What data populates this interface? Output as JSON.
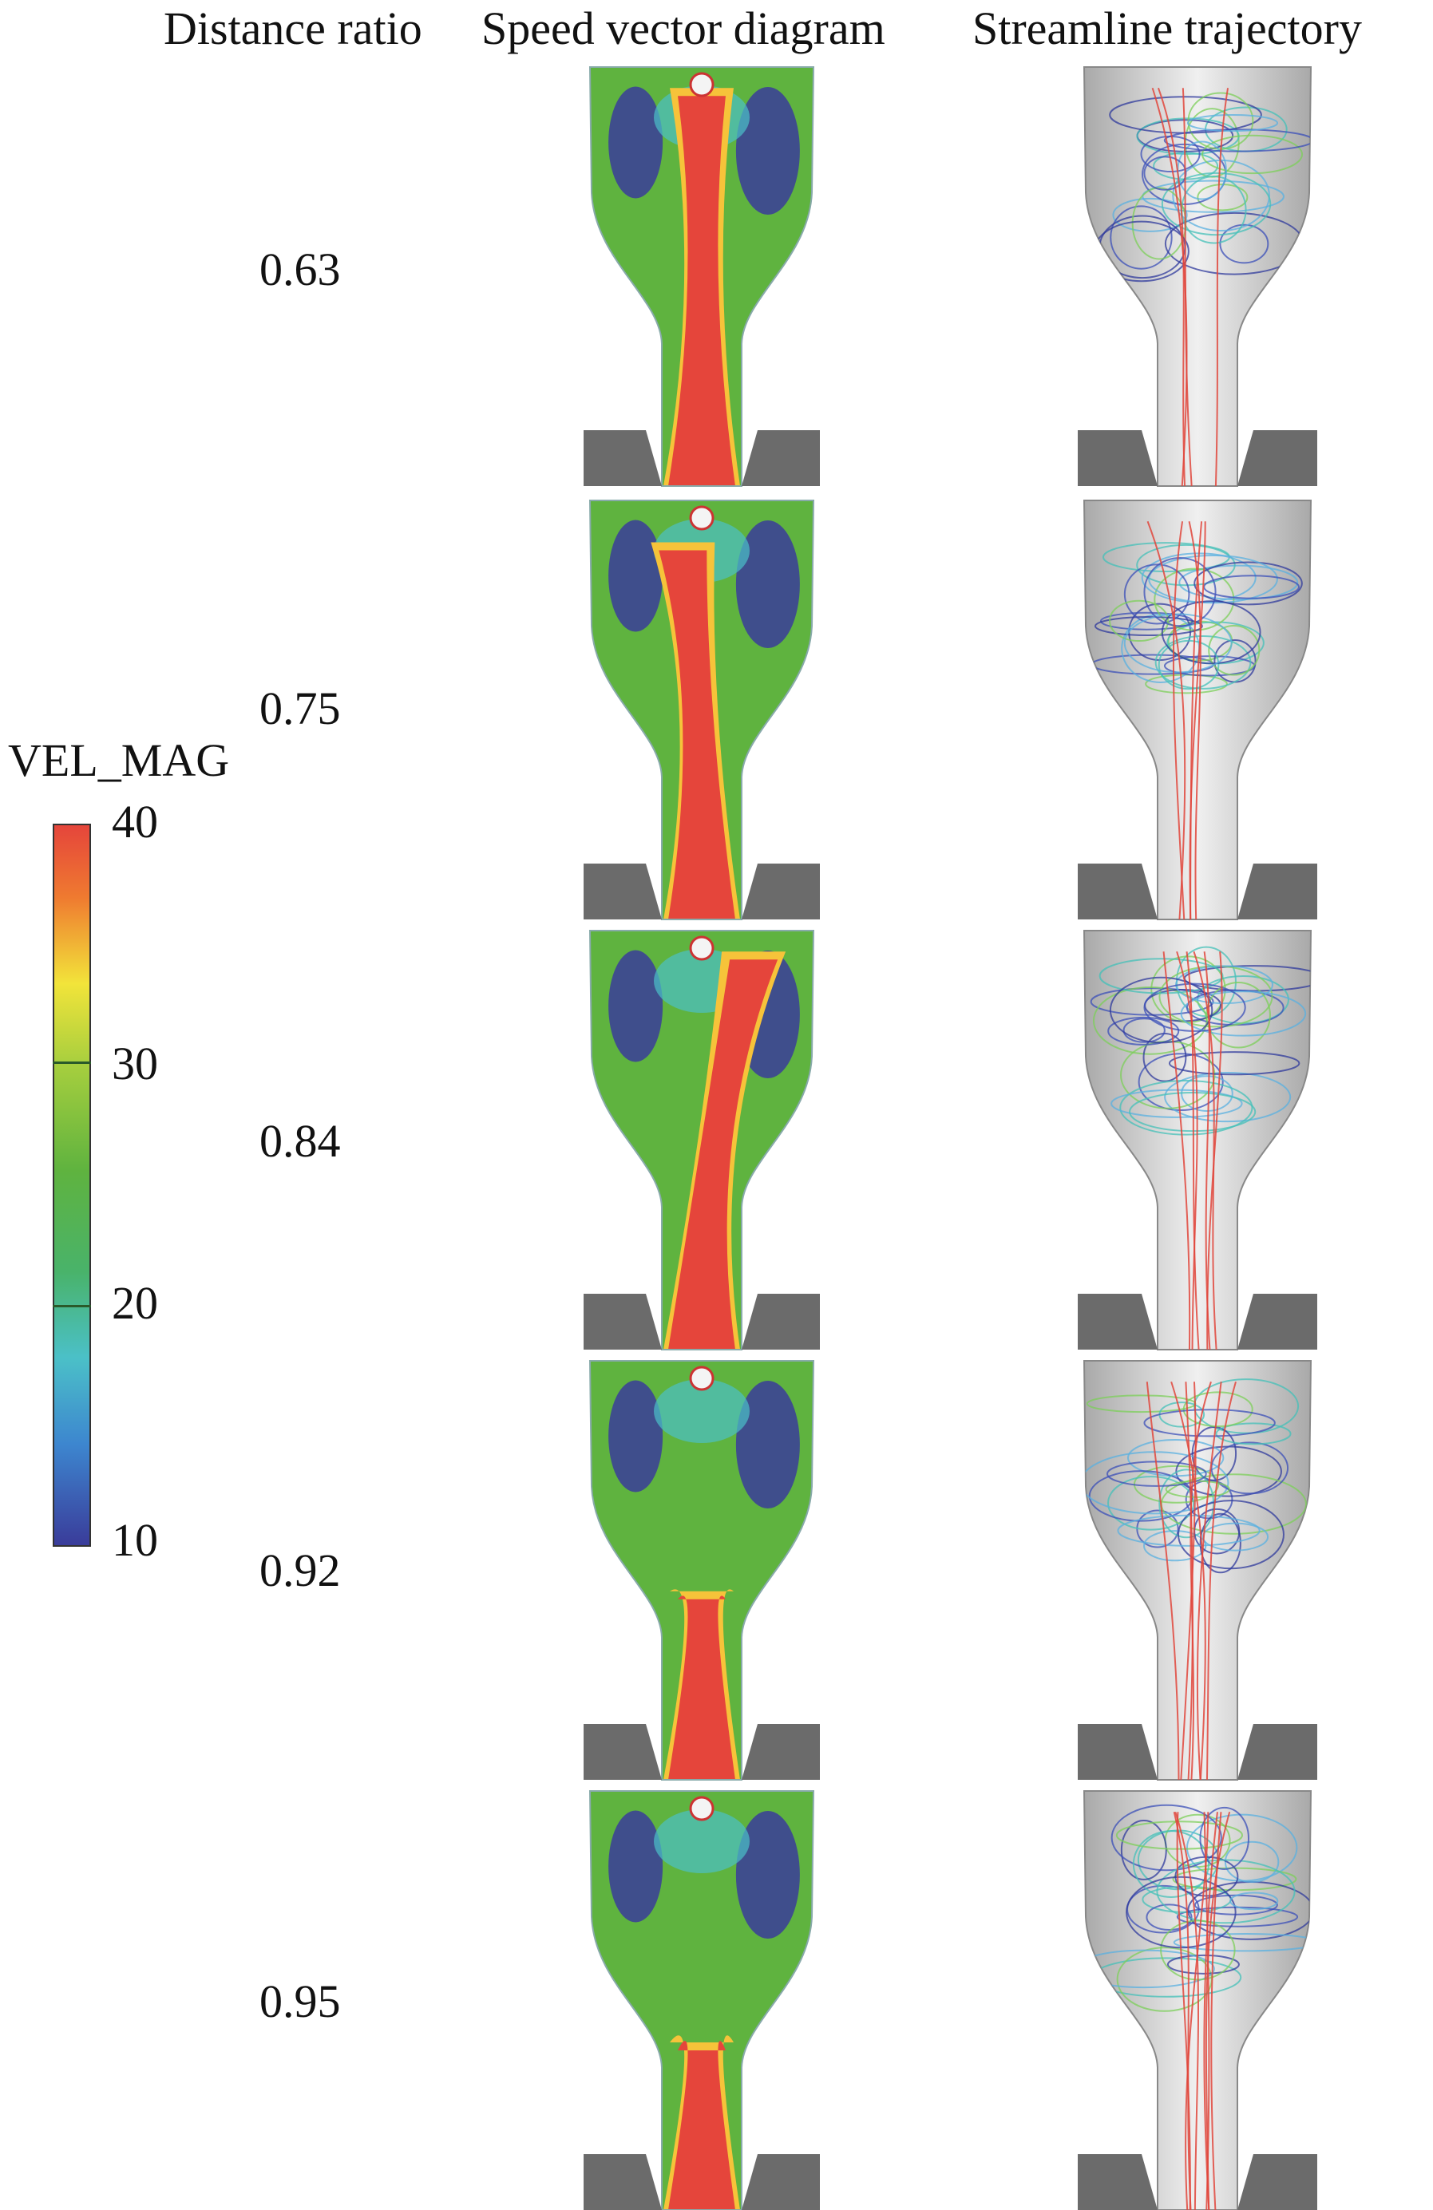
{
  "headers": {
    "distance_ratio": "Distance ratio",
    "speed_vector": "Speed vector diagram",
    "streamline": "Streamline trajectory"
  },
  "rows": [
    {
      "ratio": "0.63"
    },
    {
      "ratio": "0.75"
    },
    {
      "ratio": "0.84"
    },
    {
      "ratio": "0.92"
    },
    {
      "ratio": "0.95"
    }
  ],
  "legend": {
    "title": "VEL_MAG",
    "ticks": [
      "40",
      "30",
      "20",
      "10"
    ],
    "colors": {
      "high": "#e5453b",
      "mid_high": "#f2e43a",
      "mid": "#5fb33f",
      "mid_low": "#4bc0c8",
      "low": "#3a3c9a"
    }
  }
}
